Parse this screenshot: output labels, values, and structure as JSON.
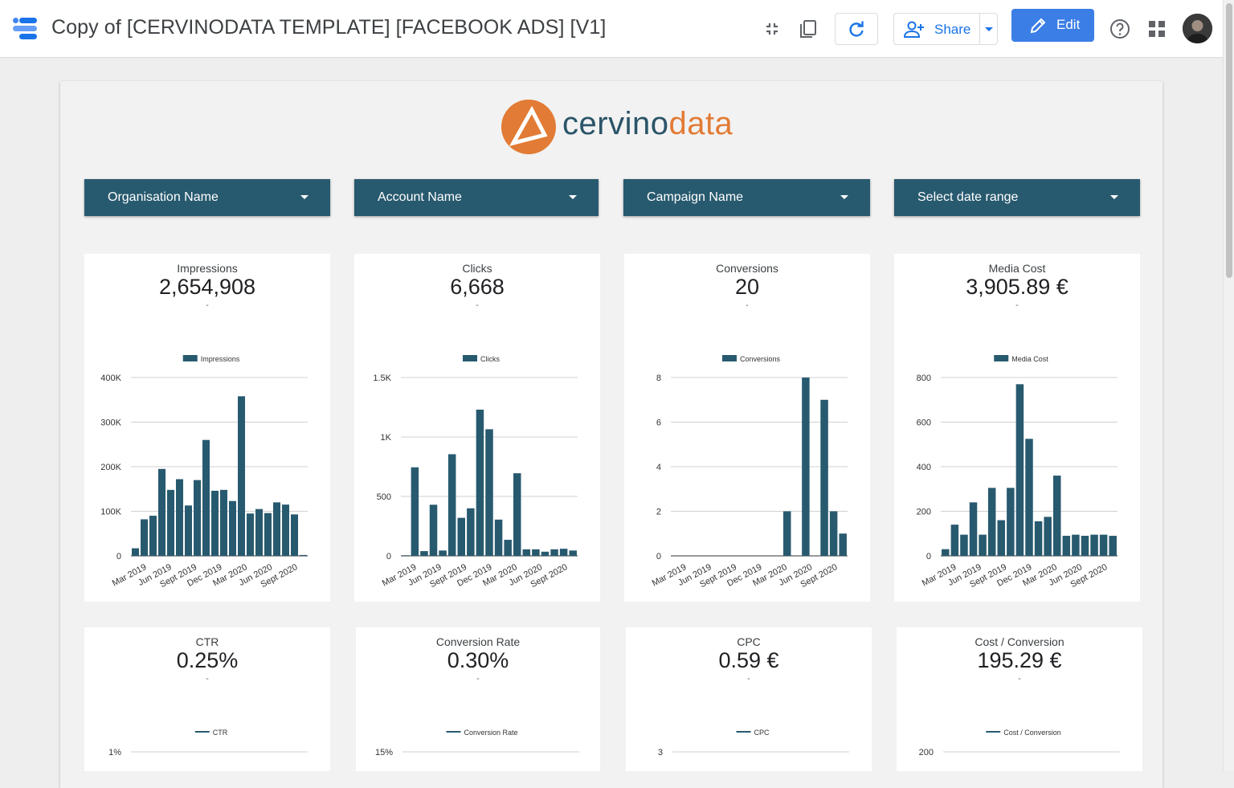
{
  "header": {
    "title": "Copy of [CERVINODATA TEMPLATE] [FACEBOOK ADS] [V1]",
    "share_label": "Share",
    "edit_label": "Edit",
    "icons": [
      "data-studio-logo",
      "fullscreen-exit-icon",
      "copy-icon",
      "refresh-icon",
      "add-person-icon",
      "dropdown-arrow-icon",
      "pencil-icon",
      "help-icon",
      "apps-grid-icon",
      "user-avatar"
    ]
  },
  "brand": {
    "part1": "cervino",
    "part2": "data",
    "color_primary": "#2b5468",
    "color_accent": "#e27b35"
  },
  "filters": [
    {
      "label": "Organisation Name"
    },
    {
      "label": "Account Name"
    },
    {
      "label": "Campaign Name"
    },
    {
      "label": "Select date range"
    }
  ],
  "colors": {
    "bar": "#285a6f",
    "filter_bg": "#285a6f",
    "edit_button": "#3b7ee6"
  },
  "scorecards": [
    {
      "label": "Impressions",
      "value": "2,654,908",
      "delta": "-",
      "chart_data": {
        "type": "bar",
        "legend": "Impressions",
        "legend_position": "top-center",
        "y_ticks": [
          0,
          100000,
          200000,
          300000,
          400000
        ],
        "y_tick_labels": [
          "0",
          "100K",
          "200K",
          "300K",
          "400K"
        ],
        "ylim": [
          0,
          400000
        ],
        "x_tick_labels": [
          "Mar 2019",
          "Jun 2019",
          "Sept 2019",
          "Dec 2019",
          "Mar 2020",
          "Jun 2020",
          "Sept 2020"
        ],
        "values": [
          17000,
          82000,
          90000,
          195000,
          148000,
          172000,
          113000,
          170000,
          260000,
          146000,
          148000,
          123000,
          358000,
          95000,
          105000,
          96000,
          120000,
          115000,
          93000,
          2000
        ]
      }
    },
    {
      "label": "Clicks",
      "value": "6,668",
      "delta": "-",
      "chart_data": {
        "type": "bar",
        "legend": "Clicks",
        "legend_position": "top-center",
        "y_ticks": [
          0,
          500,
          1000,
          1500
        ],
        "y_tick_labels": [
          "0",
          "500",
          "1K",
          "1.5K"
        ],
        "ylim": [
          0,
          1500
        ],
        "x_tick_labels": [
          "Mar 2019",
          "Jun 2019",
          "Sept 2019",
          "Dec 2019",
          "Mar 2020",
          "Jun 2020",
          "Sept 2020"
        ],
        "values": [
          5,
          745,
          40,
          430,
          45,
          855,
          320,
          400,
          1230,
          1065,
          305,
          135,
          695,
          55,
          55,
          35,
          55,
          60,
          45
        ]
      }
    },
    {
      "label": "Conversions",
      "value": "20",
      "delta": "-",
      "chart_data": {
        "type": "bar",
        "legend": "Conversions",
        "legend_position": "top-center",
        "y_ticks": [
          0,
          2,
          4,
          6,
          8
        ],
        "y_tick_labels": [
          "0",
          "2",
          "4",
          "6",
          "8"
        ],
        "ylim": [
          0,
          8
        ],
        "x_tick_labels": [
          "Mar 2019",
          "Jun 2019",
          "Sept 2019",
          "Dec 2019",
          "Mar 2020",
          "Jun 2020",
          "Sept 2020"
        ],
        "values": [
          0,
          0,
          0,
          0,
          0,
          0,
          0,
          0,
          0,
          0,
          0,
          0,
          2,
          0,
          8,
          0,
          7,
          2,
          1
        ]
      }
    },
    {
      "label": "Media Cost",
      "value": "3,905.89 €",
      "delta": "-",
      "chart_data": {
        "type": "bar",
        "legend": "Media Cost",
        "legend_position": "top-center",
        "y_ticks": [
          0,
          200,
          400,
          600,
          800
        ],
        "y_tick_labels": [
          "0",
          "200",
          "400",
          "600",
          "800"
        ],
        "ylim": [
          0,
          800
        ],
        "x_tick_labels": [
          "Mar 2019",
          "Jun 2019",
          "Sept 2019",
          "Dec 2019",
          "Mar 2020",
          "Jun 2020",
          "Sept 2020"
        ],
        "values": [
          30,
          140,
          95,
          240,
          95,
          305,
          160,
          305,
          770,
          525,
          155,
          175,
          360,
          90,
          95,
          90,
          95,
          95,
          90
        ]
      }
    },
    {
      "label": "CTR",
      "value": "0.25%",
      "delta": "-",
      "chart_data": {
        "type": "line",
        "legend": "CTR",
        "legend_position": "top-center",
        "y_tick_labels": [
          "1%"
        ]
      }
    },
    {
      "label": "Conversion Rate",
      "value": "0.30%",
      "delta": "-",
      "chart_data": {
        "type": "line",
        "legend": "Conversion Rate",
        "legend_position": "top-center",
        "y_tick_labels": [
          "15%"
        ]
      }
    },
    {
      "label": "CPC",
      "value": "0.59 €",
      "delta": "-",
      "chart_data": {
        "type": "line",
        "legend": "CPC",
        "legend_position": "top-center",
        "y_tick_labels": [
          "3"
        ]
      }
    },
    {
      "label": "Cost / Conversion",
      "value": "195.29 €",
      "delta": "-",
      "chart_data": {
        "type": "line",
        "legend": "Cost / Conversion",
        "legend_position": "top-center",
        "y_tick_labels": [
          "200"
        ]
      }
    }
  ]
}
